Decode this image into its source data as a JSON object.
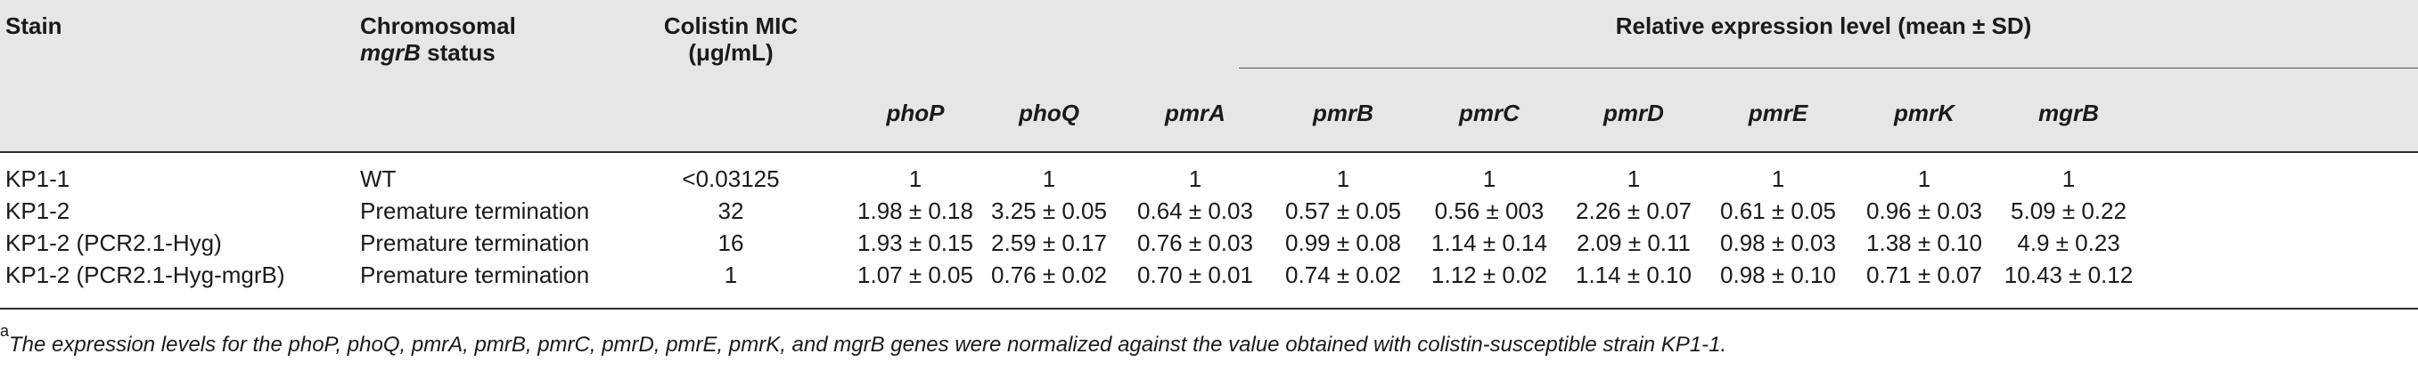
{
  "header": {
    "stain": "Stain",
    "chrom_line1": "Chromosomal",
    "chrom_gene": "mgrB",
    "chrom_line2_rest": " status",
    "colistin_line1": "Colistin MIC",
    "colistin_line2": "(μg/mL)",
    "relexp": "Relative expression level (mean ± SD)",
    "genes": [
      "phoP",
      "phoQ",
      "pmrA",
      "pmrB",
      "pmrC",
      "pmrD",
      "pmrE",
      "pmrK",
      "mgrB"
    ]
  },
  "rows": [
    {
      "stain": "KP1-1",
      "status": "WT",
      "mic": "<0.03125",
      "vals": [
        "1",
        "1",
        "1",
        "1",
        "1",
        "1",
        "1",
        "1",
        "1"
      ]
    },
    {
      "stain": "KP1-2",
      "status": "Premature termination",
      "mic": "32",
      "vals": [
        "1.98 ± 0.18",
        "3.25 ± 0.05",
        "0.64 ± 0.03",
        "0.57 ± 0.05",
        "0.56 ± 003",
        "2.26 ± 0.07",
        "0.61 ± 0.05",
        "0.96 ± 0.03",
        "5.09 ± 0.22"
      ]
    },
    {
      "stain": "KP1-2 (PCR2.1-Hyg)",
      "status": "Premature termination",
      "mic": "16",
      "vals": [
        "1.93 ± 0.15",
        "2.59 ± 0.17",
        "0.76 ± 0.03",
        "0.99 ± 0.08",
        "1.14 ± 0.14",
        "2.09 ± 0.11",
        "0.98 ± 0.03",
        "1.38 ± 0.10",
        "4.9 ± 0.23"
      ]
    },
    {
      "stain": "KP1-2 (PCR2.1-Hyg-mgrB)",
      "status": "Premature termination",
      "mic": "1",
      "vals": [
        "1.07 ± 0.05",
        "0.76 ± 0.02",
        "0.70 ± 0.01",
        "0.74 ± 0.02",
        "1.12 ± 0.02",
        "1.14 ± 0.10",
        "0.98 ± 0.10",
        "0.71 ± 0.07",
        "10.43 ± 0.12"
      ]
    }
  ],
  "footnote": {
    "marker": "a",
    "text": "The expression levels for the phoP, phoQ, pmrA, pmrB, pmrC, pmrD, pmrE, pmrK, and mgrB genes were normalized against the value obtained with colistin-susceptible strain KP1-1."
  }
}
